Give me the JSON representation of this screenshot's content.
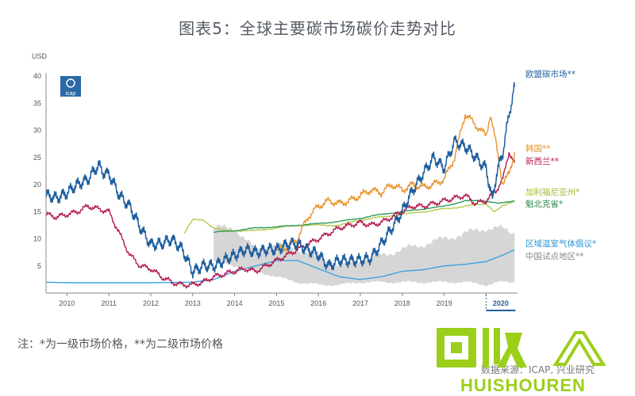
{
  "page": {
    "title": "图表5：全球主要碳市场碳价走势对比",
    "note": "注：*为一级市场价格，**为二级市场价格",
    "source": "数据来源：ICAP, 兴业研究",
    "logo_text": "icap",
    "watermark": {
      "cn": "回收",
      "en": "HUISHOUREN"
    }
  },
  "colors": {
    "eu": "#1f5f9f",
    "korea": "#e8922a",
    "nz": "#b3194f",
    "california": "#b4c84a",
    "quebec": "#2e9a5a",
    "rggi": "#3aa3dd",
    "china": "#c8c8c8",
    "eu_label": "#1f5f9f",
    "korea_label": "#e8922a",
    "nz_label": "#b3194f",
    "california_label": "#a9b92f",
    "quebec_label": "#2e8a55",
    "rggi_label": "#2e97d4",
    "china_label": "#888888"
  },
  "chart_data": {
    "type": "line",
    "title": "图表5：全球主要碳市场碳价走势对比",
    "ylabel": "USD",
    "xlabel": "",
    "ylim": [
      0,
      40
    ],
    "xlim": [
      2009.5,
      2020.75
    ],
    "y_ticks": [
      5,
      10,
      15,
      20,
      25,
      30,
      35,
      40
    ],
    "x_ticks": [
      "2010",
      "2011",
      "2012",
      "2013",
      "2014",
      "2015",
      "2016",
      "2017",
      "2018",
      "2019",
      "2020"
    ],
    "highlight_tick": "2020",
    "grid": false,
    "legend": "right",
    "series": [
      {
        "key": "eu",
        "name": "欧盟碳市场**",
        "x": [
          2009.5,
          2009.75,
          2010.0,
          2010.25,
          2010.5,
          2010.75,
          2010.9,
          2011.0,
          2011.25,
          2011.5,
          2011.75,
          2012.0,
          2012.25,
          2012.5,
          2012.75,
          2013.0,
          2013.25,
          2013.5,
          2013.75,
          2014.0,
          2014.25,
          2014.5,
          2014.75,
          2015.0,
          2015.25,
          2015.5,
          2015.75,
          2016.0,
          2016.25,
          2016.5,
          2016.75,
          2017.0,
          2017.25,
          2017.5,
          2017.75,
          2018.0,
          2018.25,
          2018.5,
          2018.75,
          2019.0,
          2019.25,
          2019.5,
          2019.75,
          2020.0,
          2020.15,
          2020.25,
          2020.4,
          2020.55,
          2020.68
        ],
        "values": [
          18,
          17.5,
          18.5,
          20,
          21,
          23.5,
          22,
          22,
          18,
          16,
          12,
          9,
          9,
          10,
          8,
          4,
          5,
          5,
          6,
          7,
          8,
          7.5,
          8,
          8,
          9,
          9,
          8,
          7,
          5,
          6,
          6,
          6,
          6.5,
          9,
          12,
          15,
          19,
          22,
          25,
          23,
          28,
          27,
          25,
          23,
          17,
          22,
          26,
          33,
          38
        ]
      },
      {
        "key": "korea",
        "name": "韩国**",
        "x": [
          2015.0,
          2015.25,
          2015.5,
          2015.75,
          2016.0,
          2016.25,
          2016.5,
          2016.75,
          2017.0,
          2017.25,
          2017.5,
          2017.75,
          2018.0,
          2018.25,
          2018.5,
          2018.75,
          2019.0,
          2019.25,
          2019.5,
          2019.75,
          2020.0,
          2020.1,
          2020.25,
          2020.4,
          2020.55,
          2020.68
        ],
        "values": [
          8,
          8.5,
          10,
          14,
          16,
          17,
          16.5,
          17,
          18,
          19,
          18.5,
          20,
          19,
          20,
          19.5,
          20,
          21,
          25,
          33,
          31,
          29,
          33,
          27,
          20,
          22,
          26
        ]
      },
      {
        "key": "nz",
        "name": "新西兰**",
        "x": [
          2009.5,
          2009.75,
          2010.0,
          2010.25,
          2010.5,
          2010.75,
          2011.0,
          2011.25,
          2011.5,
          2011.75,
          2012.0,
          2012.25,
          2012.5,
          2012.75,
          2013.0,
          2013.25,
          2013.5,
          2013.75,
          2014.0,
          2014.25,
          2014.5,
          2014.75,
          2015.0,
          2015.25,
          2015.5,
          2015.75,
          2016.0,
          2016.25,
          2016.5,
          2016.75,
          2017.0,
          2017.25,
          2017.5,
          2017.75,
          2018.0,
          2018.25,
          2018.5,
          2018.75,
          2019.0,
          2019.25,
          2019.5,
          2019.75,
          2020.0,
          2020.25,
          2020.4,
          2020.55,
          2020.68
        ],
        "values": [
          14.5,
          14,
          14.5,
          15,
          16,
          15.5,
          15,
          11,
          7,
          5,
          4.5,
          3,
          2,
          1.5,
          1.5,
          2,
          3,
          3.5,
          4,
          4.5,
          4,
          5,
          6,
          7,
          8,
          9,
          10,
          11,
          12,
          12.5,
          13,
          12.5,
          13,
          14,
          15,
          16,
          16,
          16.5,
          17,
          17.5,
          18,
          16.5,
          17,
          19,
          21,
          26,
          24
        ]
      },
      {
        "key": "california",
        "name": "加利福尼亚州*",
        "x": [
          2012.8,
          2013.0,
          2013.25,
          2013.5,
          2013.75,
          2014.0,
          2014.5,
          2015.0,
          2015.5,
          2016.0,
          2016.5,
          2017.0,
          2017.5,
          2018.0,
          2018.5,
          2019.0,
          2019.5,
          2020.0,
          2020.2,
          2020.4,
          2020.68
        ],
        "values": [
          11,
          13.5,
          13.5,
          12,
          11.5,
          11.5,
          11.5,
          12,
          12.5,
          12.5,
          12.5,
          13.5,
          14,
          14.5,
          15,
          15.5,
          16,
          16.5,
          15,
          16,
          17
        ]
      },
      {
        "key": "quebec",
        "name": "魁北克省*",
        "x": [
          2013.5,
          2014.0,
          2014.5,
          2015.0,
          2015.5,
          2016.0,
          2016.5,
          2017.0,
          2017.5,
          2018.0,
          2018.5,
          2019.0,
          2019.5,
          2020.0,
          2020.3,
          2020.68
        ],
        "values": [
          11.2,
          11.5,
          12,
          12.2,
          12.5,
          12.8,
          13.2,
          13.8,
          14.5,
          15,
          15.5,
          16,
          17,
          17,
          16.5,
          17
        ]
      },
      {
        "key": "rggi",
        "name": "区域温室气体倡议*",
        "x": [
          2009.5,
          2010.0,
          2011.0,
          2012.0,
          2013.0,
          2013.5,
          2014.0,
          2014.5,
          2015.0,
          2015.5,
          2016.0,
          2016.5,
          2017.0,
          2017.5,
          2018.0,
          2018.5,
          2019.0,
          2019.5,
          2020.0,
          2020.4,
          2020.68
        ],
        "values": [
          2,
          1.9,
          1.9,
          1.9,
          2,
          2.5,
          4,
          5,
          6,
          6,
          4.5,
          3,
          2.5,
          3,
          4,
          4.3,
          5,
          5.3,
          5.8,
          7,
          8
        ]
      },
      {
        "key": "china",
        "name": "中国试点地区**",
        "x": [
          2013.5,
          2014.0,
          2014.5,
          2015.0,
          2015.5,
          2016.0,
          2016.5,
          2017.0,
          2017.5,
          2018.0,
          2018.5,
          2019.0,
          2019.5,
          2020.0,
          2020.3,
          2020.68
        ],
        "low": [
          6,
          5,
          4,
          3,
          2,
          1.5,
          1.5,
          2,
          2,
          2,
          2,
          2,
          2,
          1.5,
          2,
          2
        ],
        "high": [
          12,
          12,
          8,
          9,
          8,
          7,
          5,
          6,
          7,
          8,
          9,
          10,
          11,
          12,
          12,
          11
        ]
      }
    ]
  }
}
